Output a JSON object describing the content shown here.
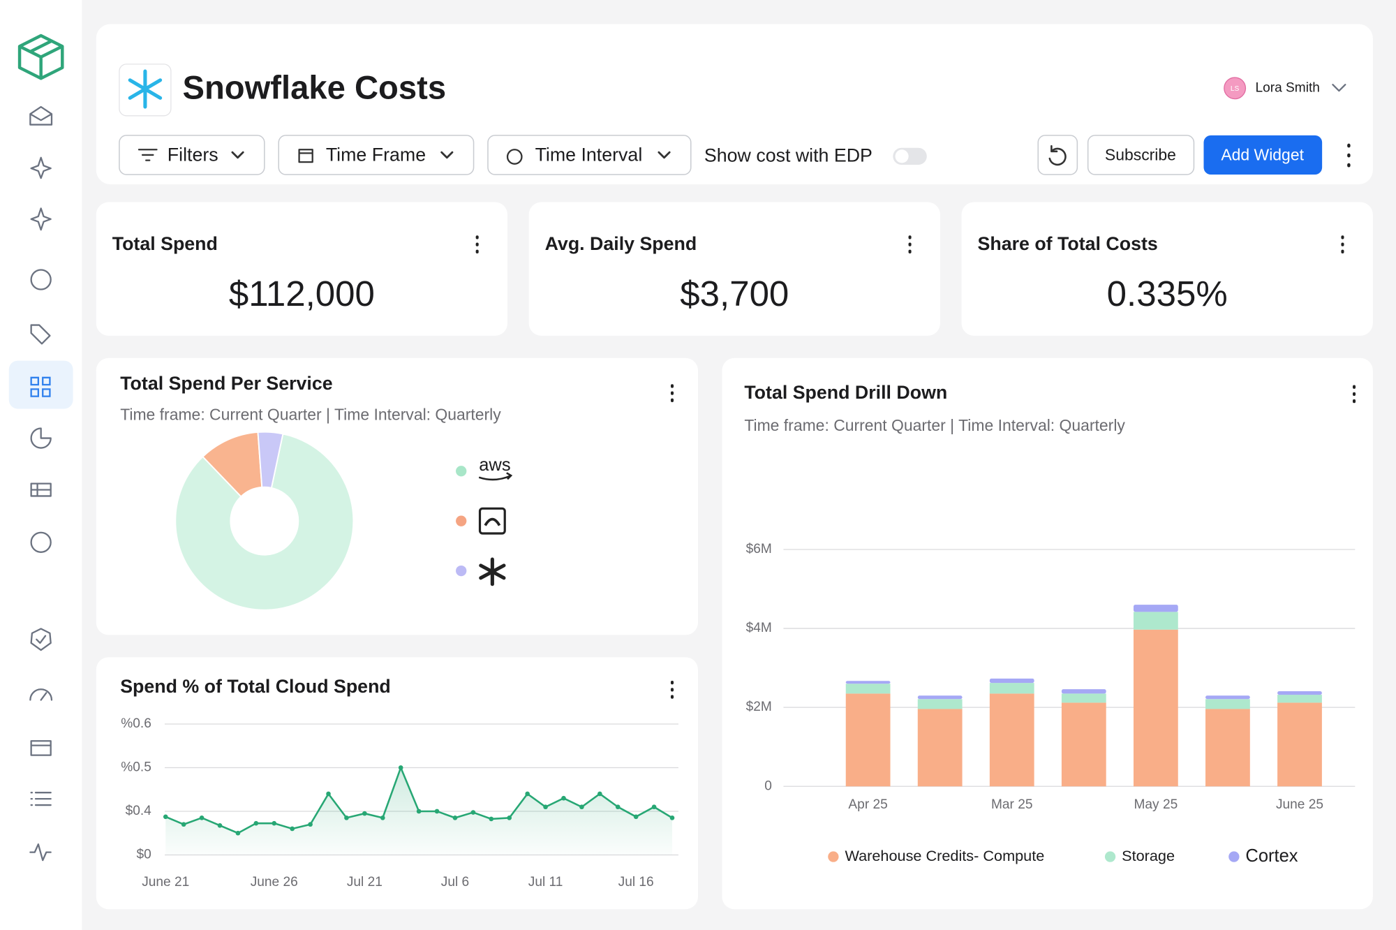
{
  "header": {
    "title": "Snowflake Costs",
    "user_initials": "LS",
    "user_name": "Lora Smith"
  },
  "toolbar": {
    "filters": "Filters",
    "time_frame": "Time Frame",
    "time_interval": "Time Interval",
    "edp_toggle": "Show cost with EDP",
    "subscribe": "Subscribe",
    "add_widget": "Add Widget"
  },
  "kpis": [
    {
      "title": "Total Spend",
      "value": "$112,000"
    },
    {
      "title": "Avg. Daily Spend",
      "value": "$3,700"
    },
    {
      "title": "Share of Total Costs",
      "value": "0.335%"
    }
  ],
  "chart_data": [
    {
      "type": "pie",
      "title": "Total Spend Per Service",
      "subtitle": "Time frame: Current Quarter | Time Interval: Quarterly",
      "categories": [
        "aws",
        null,
        null
      ],
      "values": [
        84.5,
        11,
        4.5
      ],
      "colors": [
        "#d4f3e4",
        "#f9b48f",
        "#c9c8f7"
      ],
      "legend_colors": [
        "#a8e6c8",
        "#f5a482",
        "#bcbaf5"
      ]
    },
    {
      "type": "line",
      "title": "Spend % of Total Cloud Spend",
      "categories": [
        "June 21",
        null,
        null,
        null,
        null,
        null,
        "June 26",
        null,
        null,
        null,
        null,
        "Jul 21",
        null,
        null,
        null,
        null,
        "Jul 6",
        null,
        null,
        null,
        null,
        "Jul 11",
        null,
        null,
        null,
        null,
        "Jul 16",
        null,
        null
      ],
      "values": [
        0.35,
        0.28,
        0.34,
        0.27,
        0.2,
        0.29,
        0.29,
        0.24,
        0.28,
        0.44,
        0.34,
        0.38,
        0.34,
        0.5,
        0.4,
        0.4,
        0.34,
        0.39,
        0.33,
        0.34,
        0.44,
        0.41,
        0.43,
        0.41,
        0.44,
        0.41,
        0.35,
        0.41,
        0.34
      ],
      "color": "#27a774",
      "ylim": [
        0,
        0.6
      ],
      "yticks": [
        {
          "value": 0,
          "label": "$0"
        },
        {
          "value": 0.4,
          "label": "$0.4"
        },
        {
          "value": 0.5,
          "label": "%0.5"
        },
        {
          "value": 0.6,
          "label": "%0.6"
        }
      ],
      "grid": true
    },
    {
      "type": "bar",
      "stacked": true,
      "title": "Total Spend Drill Down",
      "subtitle": "Time frame: Current Quarter | Time Interval: Quarterly",
      "categories": [
        "Apr 25",
        null,
        "Mar 25",
        null,
        "May 25",
        null,
        "June 25"
      ],
      "series": [
        {
          "name": "Warehouse Credits- Compute",
          "color": "#f9ae88",
          "values": [
            2350000,
            1960000,
            2350000,
            2120000,
            3970000,
            1960000,
            2120000
          ]
        },
        {
          "name": "Storage",
          "color": "#aee8cd",
          "values": [
            250000,
            250000,
            270000,
            230000,
            450000,
            250000,
            200000
          ]
        },
        {
          "name": "Cortex",
          "color": "#a5a8f5",
          "values": [
            70000,
            90000,
            110000,
            110000,
            180000,
            90000,
            90000
          ]
        }
      ],
      "ylim": [
        0,
        6000000
      ],
      "yticks": [
        0,
        {
          "value": 2000000,
          "label": "$2M"
        },
        {
          "value": 4000000,
          "label": "$4M"
        },
        {
          "value": 6000000,
          "label": "$6M"
        }
      ],
      "grid": true
    }
  ]
}
